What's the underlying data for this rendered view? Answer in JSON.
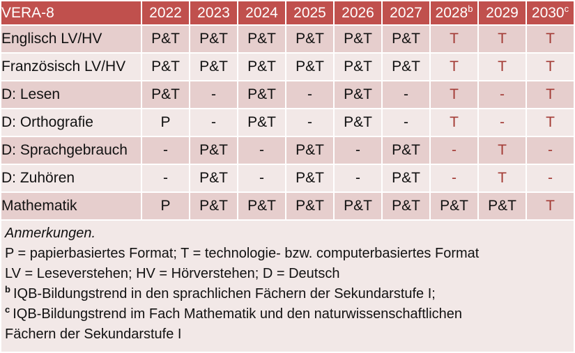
{
  "table": {
    "corner_label": "VERA-8",
    "years": [
      {
        "text": "2022",
        "sup": ""
      },
      {
        "text": "2023",
        "sup": ""
      },
      {
        "text": "2024",
        "sup": ""
      },
      {
        "text": "2025",
        "sup": ""
      },
      {
        "text": "2026",
        "sup": ""
      },
      {
        "text": "2027",
        "sup": ""
      },
      {
        "text": "2028",
        "sup": "b"
      },
      {
        "text": "2029",
        "sup": ""
      },
      {
        "text": "2030",
        "sup": "c"
      }
    ],
    "rows": [
      {
        "label": "Englisch LV/HV",
        "cells": [
          {
            "v": "P&T",
            "red": false
          },
          {
            "v": "P&T",
            "red": false
          },
          {
            "v": "P&T",
            "red": false
          },
          {
            "v": "P&T",
            "red": false
          },
          {
            "v": "P&T",
            "red": false
          },
          {
            "v": "P&T",
            "red": false
          },
          {
            "v": "T",
            "red": true
          },
          {
            "v": "T",
            "red": true
          },
          {
            "v": "T",
            "red": true
          }
        ]
      },
      {
        "label": "Französisch LV/HV",
        "cells": [
          {
            "v": "P&T",
            "red": false
          },
          {
            "v": "P&T",
            "red": false
          },
          {
            "v": "P&T",
            "red": false
          },
          {
            "v": "P&T",
            "red": false
          },
          {
            "v": "P&T",
            "red": false
          },
          {
            "v": "P&T",
            "red": false
          },
          {
            "v": "T",
            "red": true
          },
          {
            "v": "T",
            "red": true
          },
          {
            "v": "T",
            "red": true
          }
        ]
      },
      {
        "label": "D: Lesen",
        "cells": [
          {
            "v": "P&T",
            "red": false
          },
          {
            "v": "-",
            "red": false
          },
          {
            "v": "P&T",
            "red": false
          },
          {
            "v": "-",
            "red": false
          },
          {
            "v": "P&T",
            "red": false
          },
          {
            "v": "-",
            "red": false
          },
          {
            "v": "T",
            "red": true
          },
          {
            "v": "-",
            "red": true
          },
          {
            "v": "T",
            "red": true
          }
        ]
      },
      {
        "label": "D: Orthografie",
        "cells": [
          {
            "v": "P",
            "red": false
          },
          {
            "v": "-",
            "red": false
          },
          {
            "v": "P&T",
            "red": false
          },
          {
            "v": "-",
            "red": false
          },
          {
            "v": "P&T",
            "red": false
          },
          {
            "v": "-",
            "red": false
          },
          {
            "v": "T",
            "red": true
          },
          {
            "v": "-",
            "red": true
          },
          {
            "v": "T",
            "red": true
          }
        ]
      },
      {
        "label": "D: Sprachgebrauch",
        "cells": [
          {
            "v": "-",
            "red": false
          },
          {
            "v": "P&T",
            "red": false
          },
          {
            "v": "-",
            "red": false
          },
          {
            "v": "P&T",
            "red": false
          },
          {
            "v": "-",
            "red": false
          },
          {
            "v": "P&T",
            "red": false
          },
          {
            "v": "-",
            "red": true
          },
          {
            "v": "T",
            "red": true
          },
          {
            "v": "-",
            "red": true
          }
        ]
      },
      {
        "label": "D: Zuhören",
        "cells": [
          {
            "v": "-",
            "red": false
          },
          {
            "v": "P&T",
            "red": false
          },
          {
            "v": "-",
            "red": false
          },
          {
            "v": "P&T",
            "red": false
          },
          {
            "v": "-",
            "red": false
          },
          {
            "v": "P&T",
            "red": false
          },
          {
            "v": "-",
            "red": true
          },
          {
            "v": "T",
            "red": true
          },
          {
            "v": "-",
            "red": true
          }
        ]
      },
      {
        "label": "Mathematik",
        "cells": [
          {
            "v": "P",
            "red": false
          },
          {
            "v": "P&T",
            "red": false
          },
          {
            "v": "P&T",
            "red": false
          },
          {
            "v": "P&T",
            "red": false
          },
          {
            "v": "P&T",
            "red": false
          },
          {
            "v": "P&T",
            "red": false
          },
          {
            "v": "P&T",
            "red": false
          },
          {
            "v": "P&T",
            "red": false
          },
          {
            "v": "T",
            "red": true
          }
        ]
      }
    ]
  },
  "notes": {
    "heading": "Anmerkungen.",
    "lines": [
      {
        "sup": "",
        "text": "P = papierbasiertes Format; T = technologie- bzw. computerbasiertes Format"
      },
      {
        "sup": "",
        "text": "LV = Leseverstehen; HV = Hörverstehen; D = Deutsch"
      },
      {
        "sup": "b",
        "text": "IQB-Bildungstrend in den sprachlichen Fächern der Sekundarstufe I;"
      },
      {
        "sup": "c",
        "text": "IQB-Bildungstrend im Fach Mathematik und den naturwissenschaftlichen\nFächern der Sekundarstufe I"
      }
    ]
  },
  "colors": {
    "header_bg": "#C0504D",
    "band_dark": "#E6CECD",
    "band_light": "#F2E8E7",
    "red_text": "#A33B35",
    "body_text": "#111111",
    "header_text": "#FFFFFF"
  }
}
